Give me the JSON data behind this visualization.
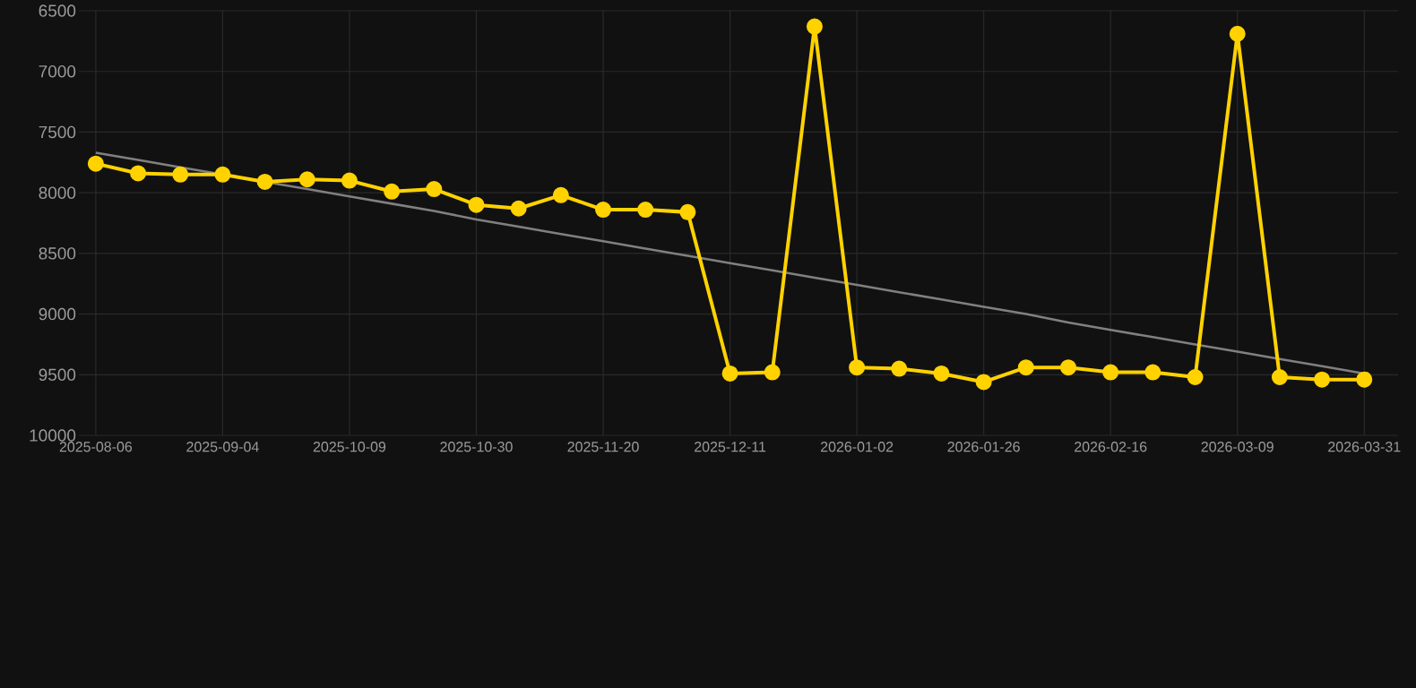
{
  "chart_data": {
    "type": "line",
    "categories": [
      "2025-08-06",
      null,
      null,
      "2025-09-04",
      null,
      null,
      "2025-10-09",
      null,
      null,
      "2025-10-30",
      null,
      null,
      "2025-11-20",
      null,
      null,
      "2025-12-11",
      null,
      null,
      "2026-01-02",
      null,
      null,
      "2026-01-26",
      null,
      null,
      "2026-02-16",
      null,
      null,
      "2026-03-09",
      null,
      null,
      "2026-03-31"
    ],
    "series": [
      {
        "color": "#ffd200",
        "values": [
          7760,
          7840,
          7850,
          7850,
          7910,
          7890,
          7900,
          7990,
          7970,
          8100,
          8130,
          8020,
          8140,
          8140,
          8160,
          9490,
          9480,
          6630,
          9440,
          9450,
          9490,
          9560,
          9440,
          9440,
          9480,
          9480,
          9520,
          6690,
          9520,
          9540,
          9540
        ]
      },
      {
        "type": "line",
        "color": "#808080",
        "marker": "none",
        "values": [
          7670,
          7730,
          7790,
          7850,
          7910,
          7970,
          8030,
          8090,
          8150,
          8220,
          8280,
          8340,
          8400,
          8460,
          8520,
          8580,
          8640,
          8700,
          8760,
          8820,
          8880,
          8940,
          9000,
          9070,
          9130,
          9190,
          9250,
          9310,
          9370,
          9430,
          9490
        ]
      }
    ],
    "ylim": [
      10000,
      6500
    ],
    "yticks": [
      6500,
      7000,
      7500,
      8000,
      8500,
      9000,
      9500,
      10000
    ],
    "grid": true,
    "marker": "circle"
  }
}
